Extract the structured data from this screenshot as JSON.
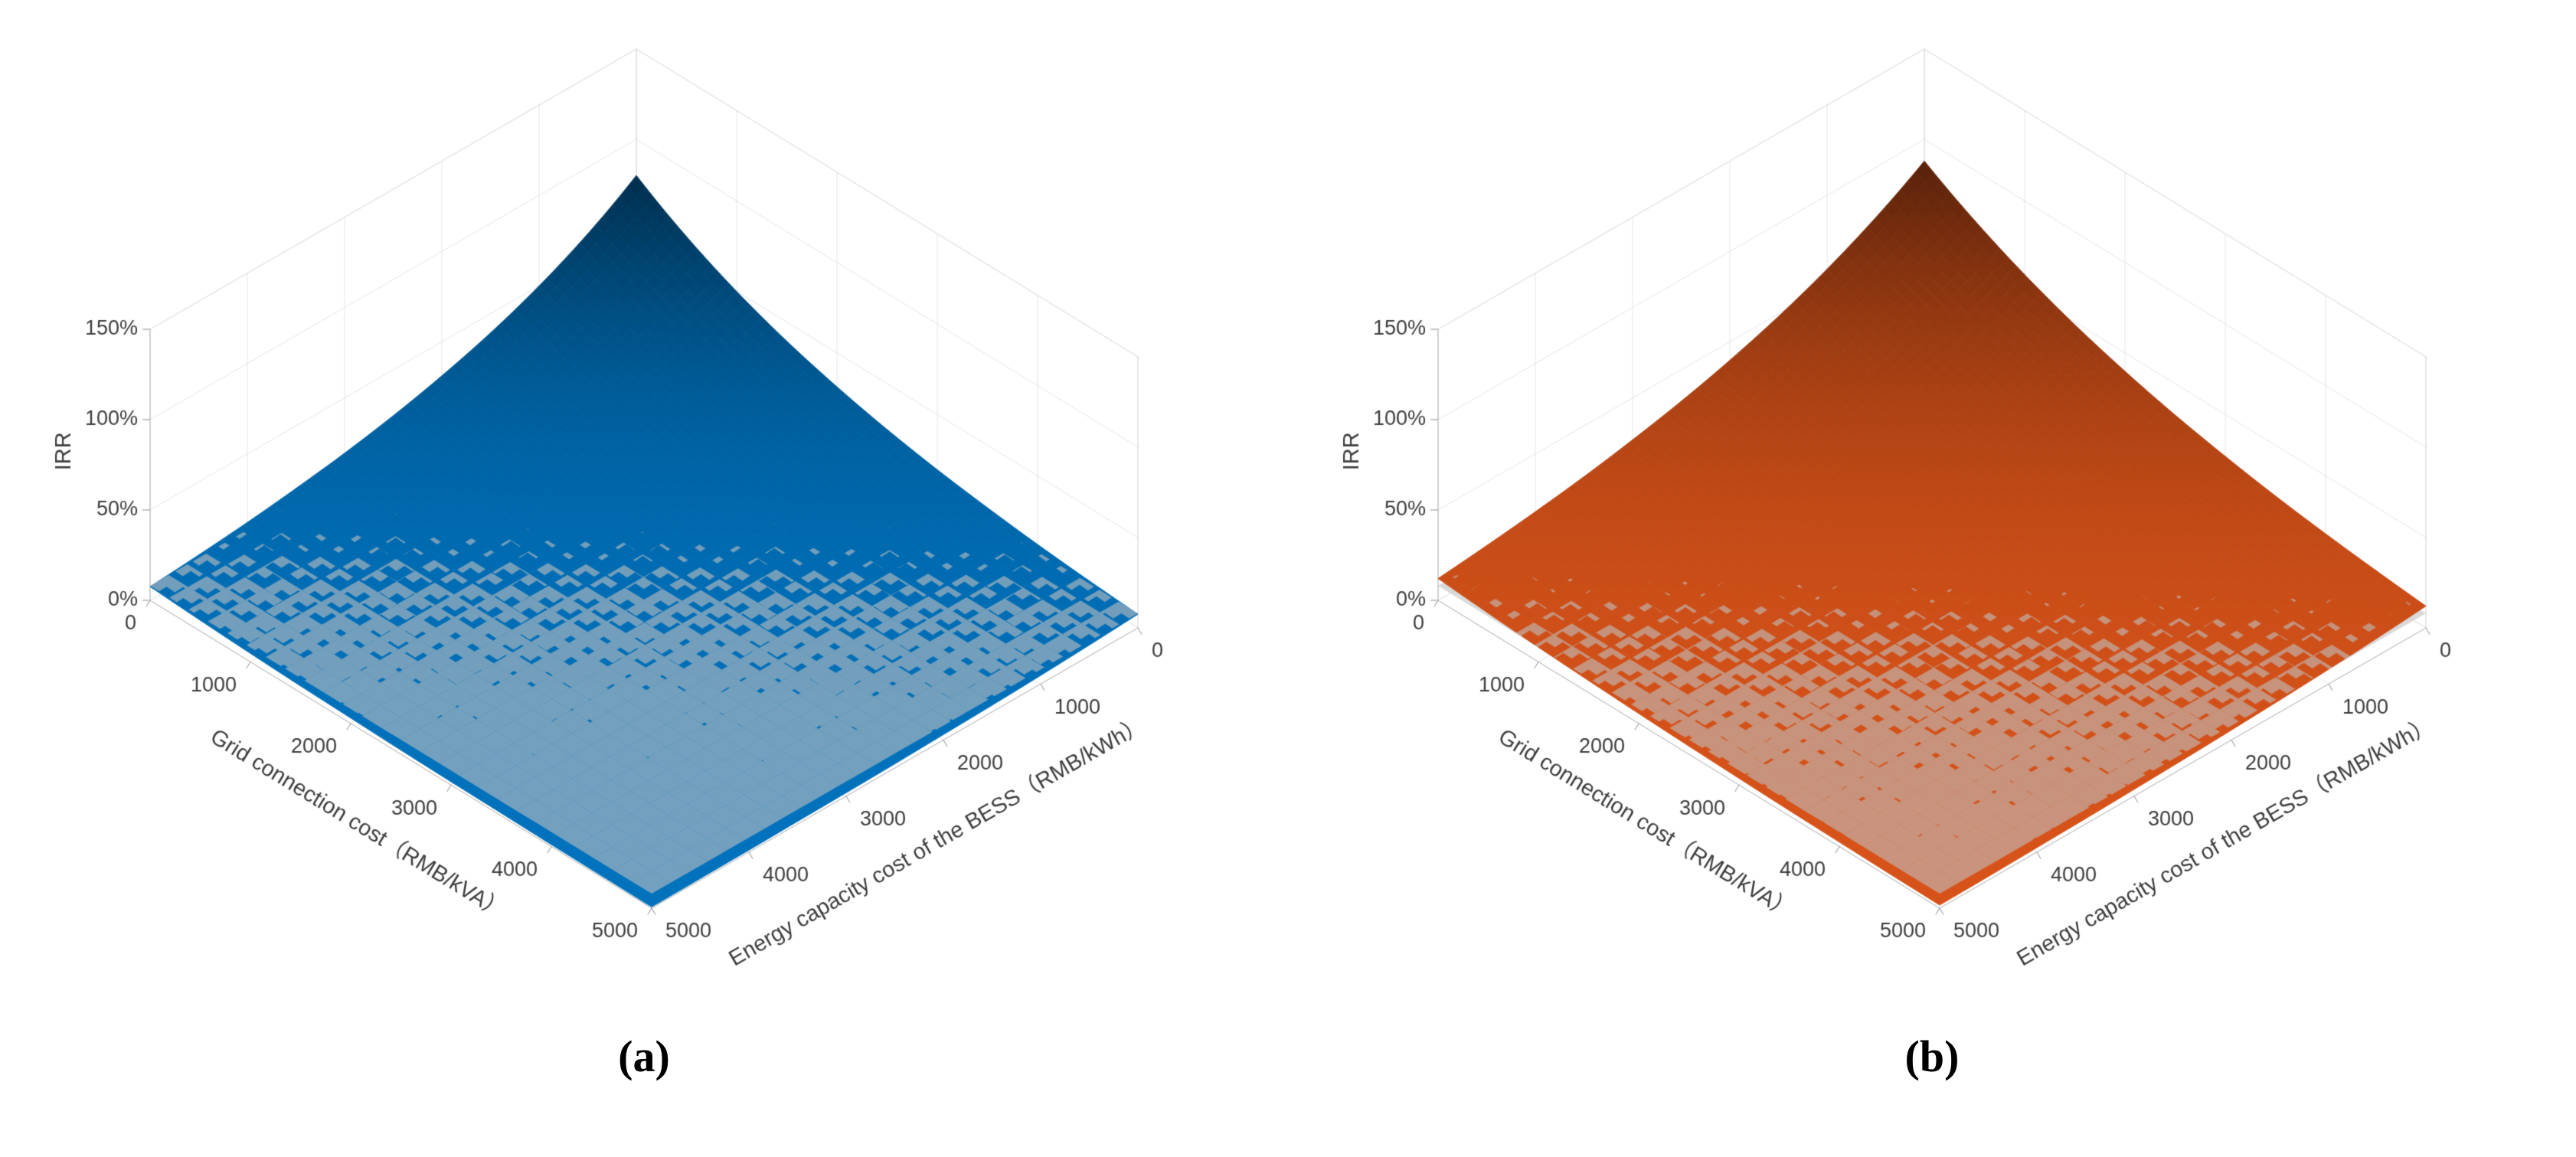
{
  "figure": {
    "background": "#ffffff",
    "captions": [
      "(a)",
      "(b)"
    ]
  },
  "chart_data": [
    {
      "type": "surface",
      "panel": "a",
      "zlabel": "IRR",
      "xlabel": "Grid connection cost（RMB/kVA）",
      "ylabel": "Energy capacity cost of the BESS（RMB/kWh）",
      "x_ticks": [
        0,
        1000,
        2000,
        3000,
        4000,
        5000
      ],
      "y_ticks": [
        0,
        1000,
        2000,
        3000,
        4000,
        5000
      ],
      "z_tick_labels": [
        "0%",
        "50%",
        "100%",
        "150%"
      ],
      "z_tick_values": [
        0,
        50,
        100,
        150
      ],
      "zlim": [
        0,
        150
      ],
      "view": {
        "azimuth": -37.5,
        "elevation": 30
      },
      "surface_color": "#0072BD",
      "reference_plane": {
        "irr_percent": 8,
        "color": "#bfbfbf",
        "opacity": 0.6
      },
      "x": [
        0,
        500,
        1000,
        1500,
        2000,
        2500,
        3000,
        3500,
        4000,
        4500,
        5000
      ],
      "y": [
        0,
        500,
        1000,
        1500,
        2000,
        2500,
        3000,
        3500,
        4000,
        4500,
        5000
      ],
      "irr_percent": [
        [
          80.0,
          63.2,
          49.9,
          39.4,
          31.2,
          24.6,
          19.4,
          15.4,
          12.1,
          9.6,
          7.6
        ],
        [
          63.2,
          49.9,
          39.4,
          31.2,
          24.6,
          19.4,
          15.4,
          12.1,
          9.6,
          7.6,
          6.0
        ],
        [
          49.9,
          39.4,
          31.2,
          24.6,
          19.4,
          15.4,
          12.1,
          9.6,
          7.6,
          6.0,
          4.7
        ],
        [
          39.4,
          31.2,
          24.6,
          19.4,
          15.4,
          12.1,
          9.6,
          7.6,
          6.0,
          4.7,
          3.7
        ],
        [
          31.2,
          24.6,
          19.4,
          15.4,
          12.1,
          9.6,
          7.6,
          6.0,
          4.7,
          3.7,
          3.0
        ],
        [
          24.6,
          19.4,
          15.4,
          12.1,
          9.6,
          7.6,
          6.0,
          4.7,
          3.7,
          3.0,
          2.3
        ],
        [
          19.4,
          15.4,
          12.1,
          9.6,
          7.6,
          6.0,
          4.7,
          3.7,
          3.0,
          2.3,
          1.8
        ],
        [
          15.4,
          12.1,
          9.6,
          7.6,
          6.0,
          4.7,
          3.7,
          3.0,
          2.3,
          1.8,
          1.5
        ],
        [
          12.1,
          9.6,
          7.6,
          6.0,
          4.7,
          3.7,
          3.0,
          2.3,
          1.8,
          1.5,
          1.1
        ],
        [
          9.6,
          7.6,
          6.0,
          4.7,
          3.7,
          3.0,
          2.3,
          1.8,
          1.5,
          1.1,
          0.9
        ],
        [
          7.6,
          6.0,
          4.7,
          3.7,
          3.0,
          2.3,
          1.8,
          1.5,
          1.1,
          0.9,
          0.7
        ]
      ]
    },
    {
      "type": "surface",
      "panel": "b",
      "zlabel": "IRR",
      "xlabel": "Grid connection cost（RMB/kVA）",
      "ylabel": "Energy capacity cost of the BESS（RMB/kWh）",
      "x_ticks": [
        0,
        1000,
        2000,
        3000,
        4000,
        5000
      ],
      "y_ticks": [
        0,
        1000,
        2000,
        3000,
        4000,
        5000
      ],
      "z_tick_labels": [
        "0%",
        "50%",
        "100%",
        "150%"
      ],
      "z_tick_values": [
        0,
        50,
        100,
        150
      ],
      "zlim": [
        0,
        150
      ],
      "view": {
        "azimuth": -37.5,
        "elevation": 30
      },
      "surface_color": "#D95319",
      "reference_plane": {
        "irr_percent": 8,
        "color": "#bfbfbf",
        "opacity": 0.6
      },
      "x": [
        0,
        500,
        1000,
        1500,
        2000,
        2500,
        3000,
        3500,
        4000,
        4500,
        5000
      ],
      "y": [
        0,
        500,
        1000,
        1500,
        2000,
        2500,
        3000,
        3500,
        4000,
        4500,
        5000
      ],
      "irr_percent": [
        [
          88.0,
          72.2,
          59.2,
          48.5,
          39.8,
          32.6,
          26.8,
          21.9,
          18.0,
          14.8,
          12.1
        ],
        [
          72.2,
          59.2,
          48.5,
          39.8,
          32.6,
          26.8,
          21.9,
          18.0,
          14.8,
          12.1,
          9.9
        ],
        [
          59.2,
          48.5,
          39.8,
          32.6,
          26.8,
          21.9,
          18.0,
          14.8,
          12.1,
          9.9,
          8.1
        ],
        [
          48.5,
          39.8,
          32.6,
          26.8,
          21.9,
          18.0,
          14.8,
          12.1,
          9.9,
          8.1,
          6.7
        ],
        [
          39.8,
          32.6,
          26.8,
          21.9,
          18.0,
          14.8,
          12.1,
          9.9,
          8.1,
          6.7,
          5.5
        ],
        [
          32.6,
          26.8,
          21.9,
          18.0,
          14.8,
          12.1,
          9.9,
          8.1,
          6.7,
          5.5,
          4.5
        ],
        [
          26.8,
          21.9,
          18.0,
          14.8,
          12.1,
          9.9,
          8.1,
          6.7,
          5.5,
          4.5,
          3.7
        ],
        [
          21.9,
          18.0,
          14.8,
          12.1,
          9.9,
          8.1,
          6.7,
          5.5,
          4.5,
          3.7,
          3.0
        ],
        [
          18.0,
          14.8,
          12.1,
          9.9,
          8.1,
          6.7,
          5.5,
          4.5,
          3.7,
          3.0,
          2.5
        ],
        [
          14.8,
          12.1,
          9.9,
          8.1,
          6.7,
          5.5,
          4.5,
          3.7,
          3.0,
          2.5,
          2.0
        ],
        [
          12.1,
          9.9,
          8.1,
          6.7,
          5.5,
          4.5,
          3.7,
          3.0,
          2.5,
          2.0,
          1.7
        ]
      ]
    }
  ]
}
